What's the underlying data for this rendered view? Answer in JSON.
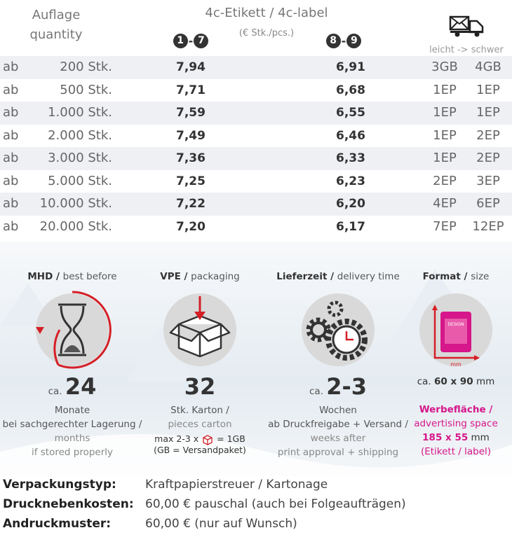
{
  "header": {
    "quantity_de": "Auflage",
    "quantity_en": "quantity",
    "product": "4c-Etikett / 4c-label",
    "unit": "(€ Stk./pcs.)",
    "group1": {
      "from": "1",
      "sep": "-",
      "to": "7"
    },
    "group2": {
      "from": "8",
      "sep": "-",
      "to": "9"
    },
    "shipping": "leicht -> schwer"
  },
  "table": {
    "rows": [
      [
        "ab",
        "200 Stk.",
        "7,94",
        "6,91",
        "3GB",
        "4GB"
      ],
      [
        "ab",
        "500 Stk.",
        "7,71",
        "6,68",
        "1EP",
        "1EP"
      ],
      [
        "ab",
        "1.000 Stk.",
        "7,59",
        "6,55",
        "1EP",
        "1EP"
      ],
      [
        "ab",
        "2.000 Stk.",
        "7,49",
        "6,46",
        "1EP",
        "2EP"
      ],
      [
        "ab",
        "3.000 Stk.",
        "7,36",
        "6,33",
        "1EP",
        "2EP"
      ],
      [
        "ab",
        "5.000 Stk.",
        "7,25",
        "6,23",
        "2EP",
        "3EP"
      ],
      [
        "ab",
        "10.000 Stk.",
        "7,22",
        "6,20",
        "4EP",
        "6EP"
      ],
      [
        "ab",
        "20.000 Stk.",
        "7,20",
        "6,17",
        "7EP",
        "12EP"
      ]
    ]
  },
  "info": {
    "mhd": {
      "title": "MHD /",
      "subtitle": "best before",
      "prefix": "ca.",
      "value": "24",
      "unit": "Monate",
      "lines": [
        "bei sachgerechter Lagerung /",
        "months",
        "if stored properly"
      ]
    },
    "vpe": {
      "title": "VPE /",
      "subtitle": "packaging",
      "value": "32",
      "unit": "Stk. Karton /",
      "lines": [
        "pieces carton"
      ],
      "note_pre": "max 2-3 x",
      "note_post": "= 1GB",
      "note2": "(GB = Versandpaket)"
    },
    "delivery": {
      "title": "Lieferzeit /",
      "subtitle": "delivery time",
      "prefix": "ca.",
      "value": "2-3",
      "unit": "Wochen",
      "lines": [
        "ab Druckfreigabe + Versand /",
        "weeks after",
        "print approval + shipping"
      ]
    },
    "format": {
      "title": "Format /",
      "subtitle": "size",
      "icon_label": "DESIGN",
      "icon_unit": "mm",
      "size_prefix": "ca.",
      "size": "60 x 90",
      "size_unit": "mm",
      "ad_title": "Werbefläche /",
      "ad_en": "advertising space",
      "ad_size": "185 x 55",
      "ad_unit": "mm",
      "ad_note": "(Etikett / label)"
    }
  },
  "footer": [
    [
      "Verpackungstyp:",
      "Kraftpapierstreuer / Kartonage"
    ],
    [
      "Drucknebenkosten:",
      "60,00 € pauschal (auch bei Folgeaufträgen)"
    ],
    [
      "Andruckmuster:",
      "60,00 € (nur auf Wunsch)"
    ]
  ]
}
